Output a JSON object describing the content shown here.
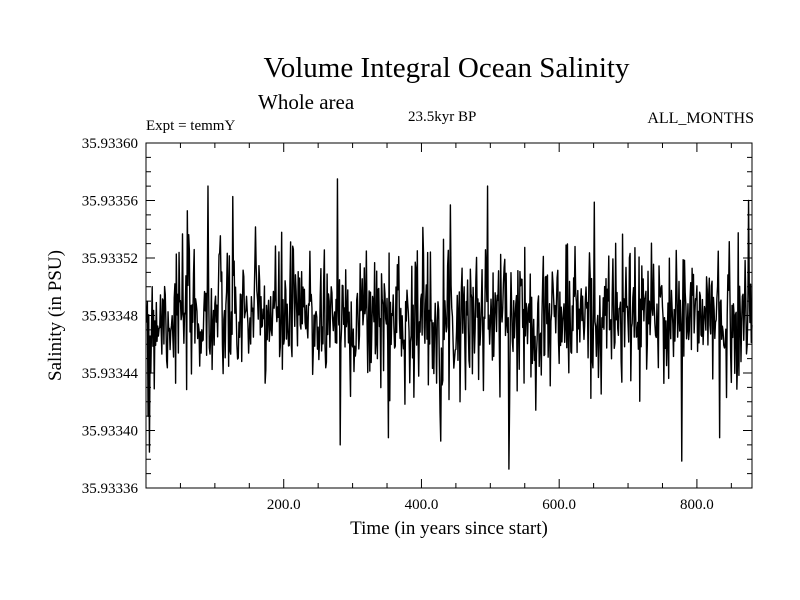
{
  "header": {
    "title": "Volume Integral Ocean Salinity",
    "subtitle": "Whole area",
    "experiment": "Expt = temmY",
    "period": "23.5kyr BP",
    "season": "ALL_MONTHS"
  },
  "colors": {
    "line": "#000000",
    "axis": "#000000",
    "background": "#ffffff"
  },
  "chart_data": {
    "type": "line",
    "title": "Volume Integral Ocean Salinity",
    "subtitle": "Whole area",
    "xlabel": "Time (in years since start)",
    "ylabel": "Salinity (in PSU)",
    "xlim": [
      0,
      880
    ],
    "ylim": [
      35.93336,
      35.9336
    ],
    "grid": false,
    "xticks": [
      200,
      400,
      600,
      800
    ],
    "xtick_labels": [
      "200.0",
      "400.0",
      "600.0",
      "800.0"
    ],
    "yticks": [
      35.93336,
      35.9334,
      35.93344,
      35.93348,
      35.93352,
      35.93356,
      35.9336
    ],
    "ytick_labels": [
      "35.93336",
      "35.93340",
      "35.93344",
      "35.93348",
      "35.93352",
      "35.93356",
      "35.93360"
    ],
    "series": [
      {
        "name": "salinity",
        "description": "annual values, approximately 880 years; noisy series centred near 35.93348 PSU",
        "mean": 35.93348,
        "std": 2.5e-05,
        "n_points": 880,
        "notable_points": [
          {
            "x": 1,
            "y": 35.933475
          },
          {
            "x": 3,
            "y": 35.93341
          },
          {
            "x": 5,
            "y": 35.933385
          },
          {
            "x": 7,
            "y": 35.93344
          },
          {
            "x": 90,
            "y": 35.93357
          },
          {
            "x": 278,
            "y": 35.933575
          },
          {
            "x": 282,
            "y": 35.93339
          },
          {
            "x": 352,
            "y": 35.933395
          },
          {
            "x": 496,
            "y": 35.93357
          },
          {
            "x": 833,
            "y": 35.933395
          },
          {
            "x": 875,
            "y": 35.93356
          }
        ]
      }
    ]
  }
}
